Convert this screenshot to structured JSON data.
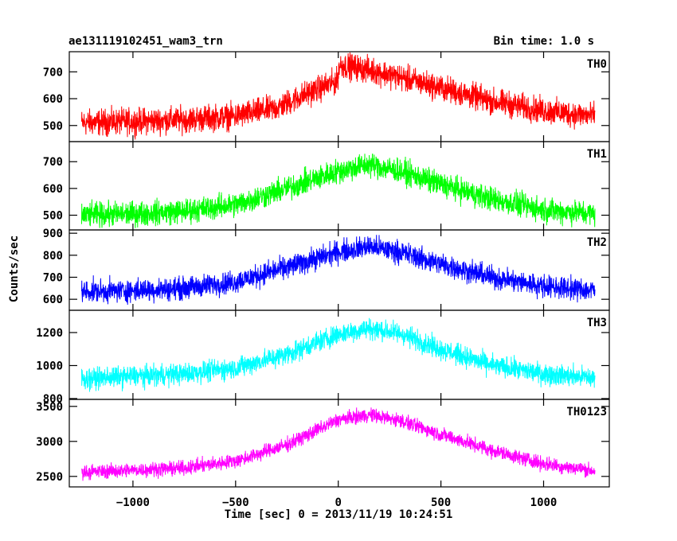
{
  "chart_data": {
    "type": "line",
    "title": "ae131119102451_wam3_trn",
    "bin_time": "Bin time: 1.0 s",
    "xlabel": "Time [sec] 0 = 2013/11/19 10:24:51",
    "ylabel": "Counts/sec",
    "xlim": [
      -1310,
      1320
    ],
    "xticks": [
      -1000,
      -500,
      0,
      500,
      1000
    ],
    "xtick_labels": [
      "−1000",
      "−500",
      "0",
      "500",
      "1000"
    ],
    "panels": [
      {
        "name": "TH0",
        "color": "#ff0000",
        "ylim": [
          440,
          775
        ],
        "yticks": [
          500,
          600,
          700
        ],
        "ytick_labels": [
          "500",
          "600",
          "700"
        ],
        "x": [
          -1250,
          -1000,
          -750,
          -500,
          -300,
          -150,
          -5,
          5,
          100,
          250,
          500,
          750,
          1000,
          1250
        ],
        "y": [
          510,
          515,
          522,
          535,
          565,
          620,
          665,
          725,
          715,
          690,
          640,
          590,
          555,
          535
        ],
        "noise": 38
      },
      {
        "name": "TH1",
        "color": "#00ff00",
        "ylim": [
          445,
          775
        ],
        "yticks": [
          500,
          600,
          700
        ],
        "ytick_labels": [
          "500",
          "600",
          "700"
        ],
        "x": [
          -1250,
          -1000,
          -750,
          -500,
          -250,
          0,
          150,
          300,
          500,
          750,
          1000,
          1250
        ],
        "y": [
          500,
          505,
          515,
          540,
          600,
          665,
          690,
          665,
          615,
          560,
          520,
          505
        ],
        "noise": 36
      },
      {
        "name": "TH2",
        "color": "#0000ff",
        "ylim": [
          550,
          915
        ],
        "yticks": [
          600,
          700,
          800,
          900
        ],
        "ytick_labels": [
          "600",
          "700",
          "800",
          "900"
        ],
        "x": [
          -1250,
          -1000,
          -750,
          -500,
          -250,
          0,
          150,
          300,
          500,
          750,
          1000,
          1250
        ],
        "y": [
          635,
          640,
          650,
          680,
          745,
          815,
          840,
          815,
          760,
          700,
          660,
          640
        ],
        "noise": 40
      },
      {
        "name": "TH3",
        "color": "#00ffff",
        "ylim": [
          795,
          1335
        ],
        "yticks": [
          800,
          1000,
          1200
        ],
        "ytick_labels": [
          "800",
          "1000",
          "1200"
        ],
        "x": [
          -1250,
          -1000,
          -750,
          -500,
          -250,
          0,
          150,
          300,
          500,
          750,
          1000,
          1250
        ],
        "y": [
          920,
          935,
          950,
          985,
          1070,
          1190,
          1225,
          1195,
          1100,
          1000,
          950,
          925
        ],
        "noise": 50
      },
      {
        "name": "TH0123",
        "color": "#ff00ff",
        "ylim": [
          2350,
          3600
        ],
        "yticks": [
          2500,
          3000,
          3500
        ],
        "ytick_labels": [
          "2500",
          "3000",
          "3500"
        ],
        "x": [
          -1250,
          -1000,
          -750,
          -500,
          -250,
          0,
          150,
          300,
          500,
          750,
          1000,
          1250
        ],
        "y": [
          2560,
          2590,
          2620,
          2720,
          2950,
          3310,
          3380,
          3300,
          3100,
          2870,
          2680,
          2580
        ],
        "noise": 80
      }
    ]
  }
}
